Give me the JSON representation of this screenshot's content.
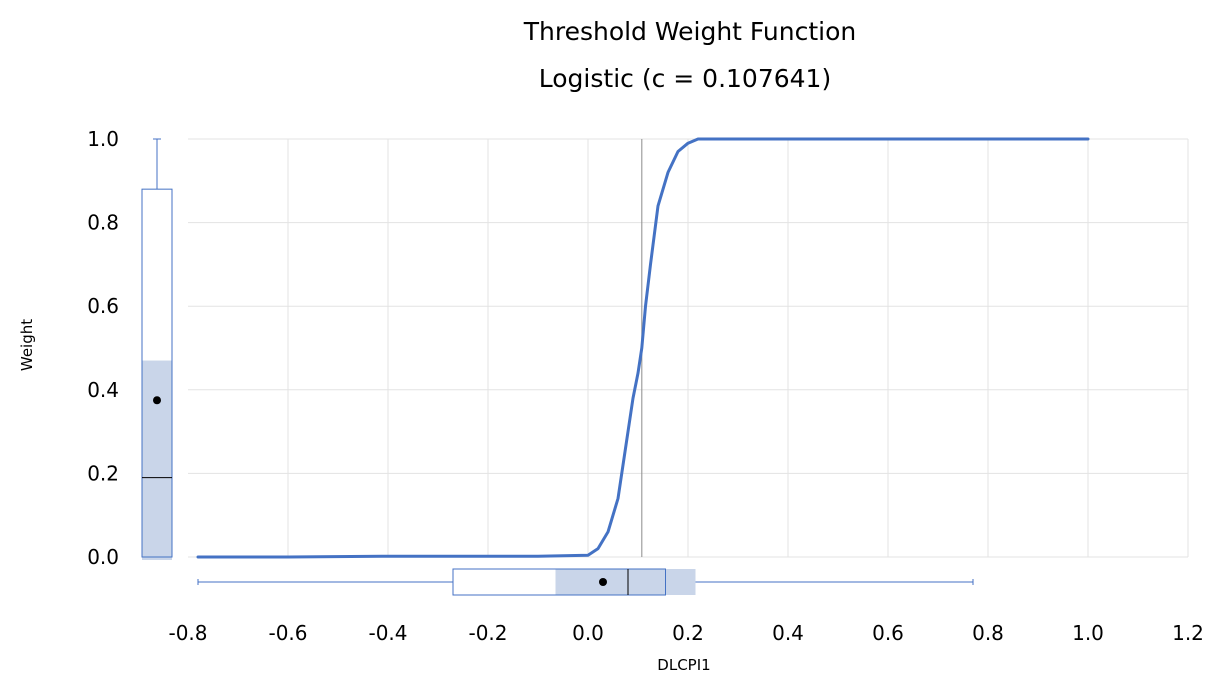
{
  "chart_data": {
    "type": "line",
    "title": "Threshold Weight Function",
    "subtitle": "Logistic (c = 0.107641)",
    "xlabel": "DLCPI1",
    "ylabel": "Weight",
    "xlim": [
      -0.8,
      1.2
    ],
    "ylim": [
      0.0,
      1.0
    ],
    "x_ticks": [
      "-0.8",
      "-0.6",
      "-0.4",
      "-0.2",
      "0.0",
      "0.2",
      "0.4",
      "0.6",
      "0.8",
      "1.0",
      "1.2"
    ],
    "y_ticks": [
      "0.0",
      "0.2",
      "0.4",
      "0.6",
      "0.8",
      "1.0"
    ],
    "grid": true,
    "threshold_line_x": 0.107641,
    "series": [
      {
        "color": "#4472c4",
        "x": [
          -0.78,
          -0.6,
          -0.4,
          -0.2,
          -0.1,
          0.0,
          0.02,
          0.04,
          0.06,
          0.08,
          0.09,
          0.1,
          0.107641,
          0.115,
          0.125,
          0.14,
          0.16,
          0.18,
          0.2,
          0.22,
          0.25,
          0.4,
          0.6,
          0.8,
          1.0
        ],
        "y": [
          0.0,
          0.0,
          0.002,
          0.002,
          0.002,
          0.004,
          0.02,
          0.06,
          0.14,
          0.3,
          0.38,
          0.44,
          0.5,
          0.6,
          0.7,
          0.84,
          0.92,
          0.97,
          0.99,
          1.0,
          1.0,
          1.0,
          1.0,
          1.0,
          1.0
        ]
      }
    ],
    "boxplot_x": {
      "whisker_low": -0.78,
      "q1": -0.27,
      "median": 0.08,
      "q3": 0.155,
      "whisker_high": 0.77,
      "mean": 0.03,
      "ci_low": -0.065,
      "ci_high": 0.215
    },
    "boxplot_y": {
      "whisker_low": 0.0,
      "q1": 0.0,
      "median": 0.19,
      "q3": 0.88,
      "whisker_high": 1.0,
      "mean": 0.375,
      "ci_low": 0.0,
      "ci_high": 0.47
    },
    "colors": {
      "line": "#4472c4",
      "box_stroke": "#4472c4",
      "ci_fill": "#c9d5e9",
      "grid": "#e3e3e3",
      "threshold": "#8c8c8c"
    }
  }
}
